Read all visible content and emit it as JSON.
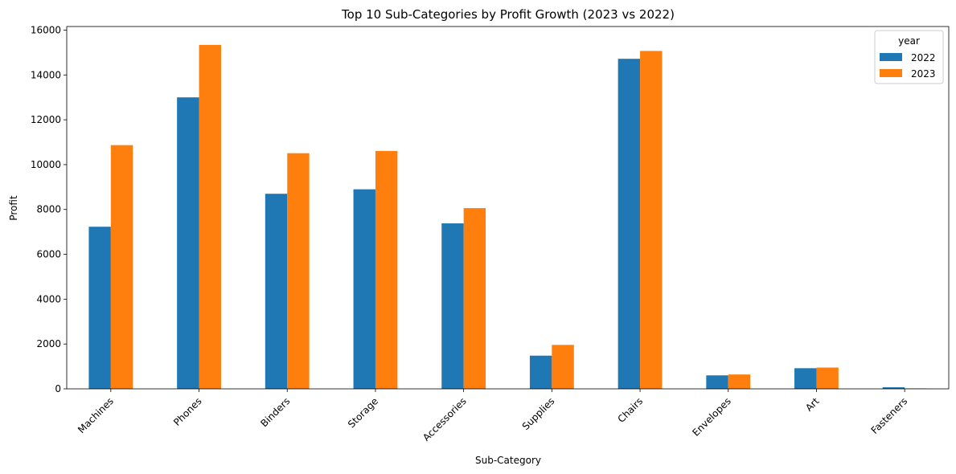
{
  "chart_data": {
    "type": "bar",
    "title": "Top 10 Sub-Categories by Profit Growth (2023 vs 2022)",
    "xlabel": "Sub-Category",
    "ylabel": "Profit",
    "categories": [
      "Machines",
      "Phones",
      "Binders",
      "Storage",
      "Accessories",
      "Supplies",
      "Chairs",
      "Envelopes",
      "Art",
      "Fasteners"
    ],
    "series": [
      {
        "name": "2022",
        "color": "#1f77b4",
        "values": [
          7230,
          13000,
          8700,
          8900,
          7380,
          1480,
          14720,
          600,
          920,
          70
        ]
      },
      {
        "name": "2023",
        "color": "#ff7f0e",
        "values": [
          10870,
          15340,
          10510,
          10610,
          8060,
          1960,
          15070,
          640,
          950,
          20
        ]
      }
    ],
    "ylim": [
      0,
      16160
    ],
    "yticks": [
      0,
      2000,
      4000,
      6000,
      8000,
      10000,
      12000,
      14000,
      16000
    ],
    "legend": {
      "title": "year",
      "placement": "top-right"
    },
    "grid": false
  }
}
